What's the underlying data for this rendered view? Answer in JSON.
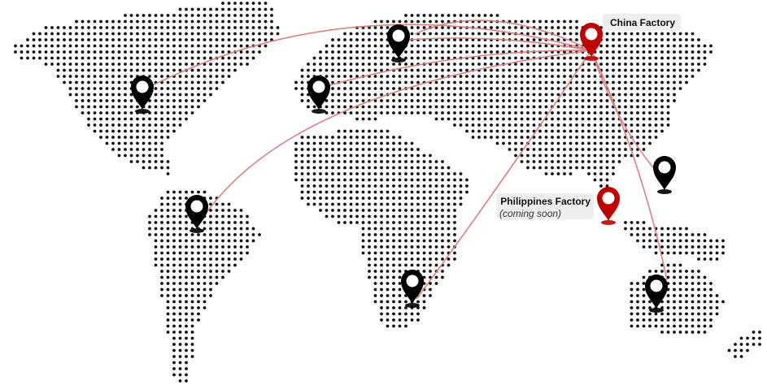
{
  "labels": {
    "china": "China Factory",
    "philippines": {
      "title": "Philippines Factory",
      "note": "(coming soon)"
    }
  }
}
